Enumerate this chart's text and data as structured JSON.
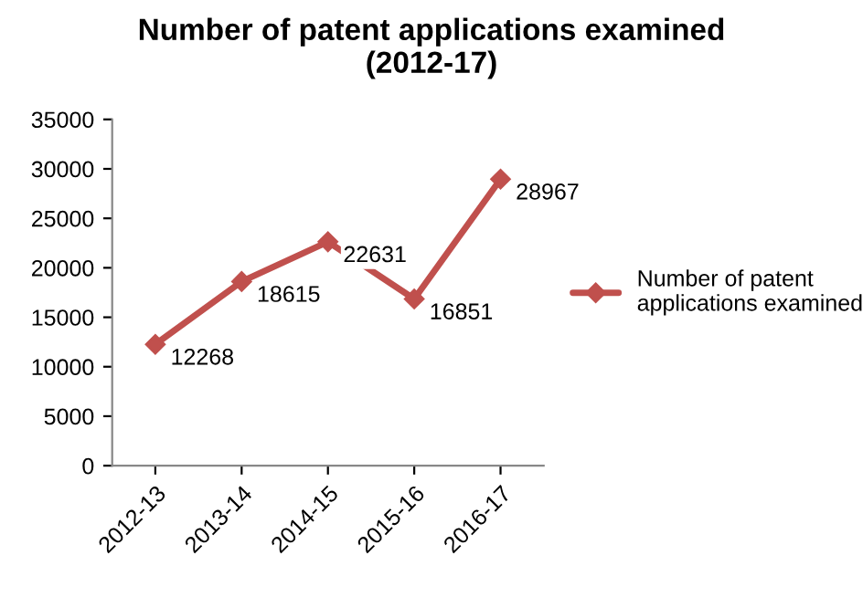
{
  "chart_data": {
    "type": "line",
    "title": "Number of patent applications examined\n(2012-17)",
    "categories": [
      "2012-13",
      "2013-14",
      "2014-15",
      "2015-16",
      "2016-17"
    ],
    "series": [
      {
        "name": "Number of patent\napplications examined",
        "color": "#c0504d",
        "values": [
          12268,
          18615,
          22631,
          16851,
          28967
        ]
      }
    ],
    "ylim": [
      0,
      35000
    ],
    "yticks": [
      0,
      5000,
      10000,
      15000,
      20000,
      25000,
      30000,
      35000
    ],
    "grid": false,
    "legend": "right",
    "marker": "diamond",
    "line_style": "solid",
    "data_labels": true
  }
}
